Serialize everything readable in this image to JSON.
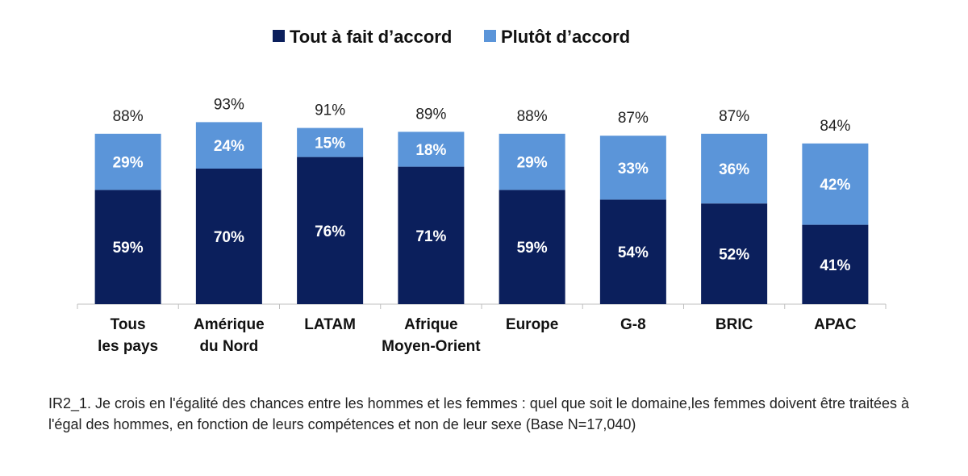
{
  "chart_data": {
    "type": "bar",
    "stacked": true,
    "categories": [
      [
        "Tous",
        "les pays"
      ],
      [
        "Amérique",
        "du Nord"
      ],
      [
        "LATAM"
      ],
      [
        "Afrique",
        "Moyen-Orient"
      ],
      [
        "Europe"
      ],
      [
        "G-8"
      ],
      [
        "BRIC"
      ],
      [
        "APAC"
      ]
    ],
    "series": [
      {
        "name": "Tout à fait d’accord",
        "color": "#0b1f5c",
        "values": [
          59,
          70,
          76,
          71,
          59,
          54,
          52,
          41
        ],
        "labels": [
          "59%",
          "70%",
          "76%",
          "71%",
          "59%",
          "54%",
          "52%",
          "41%"
        ]
      },
      {
        "name": "Plutôt d’accord",
        "color": "#5b95d9",
        "values": [
          29,
          24,
          15,
          18,
          29,
          33,
          36,
          42
        ],
        "labels": [
          "29%",
          "24%",
          "15%",
          "18%",
          "29%",
          "33%",
          "36%",
          "42%"
        ]
      }
    ],
    "totals": [
      88,
      93,
      91,
      89,
      88,
      87,
      87,
      84
    ],
    "total_labels": [
      "88%",
      "93%",
      "91%",
      "89%",
      "88%",
      "87%",
      "87%",
      "84%"
    ],
    "ylim": [
      0,
      100
    ],
    "grid": false,
    "legend_position": "top-center"
  },
  "caption": "IR2_1. Je crois en l'égalité des chances entre les hommes et les femmes : quel que soit le domaine,les femmes doivent être traitées à l'égal des hommes, en fonction de leurs compétences et non de leur sexe (Base N=17,040)"
}
